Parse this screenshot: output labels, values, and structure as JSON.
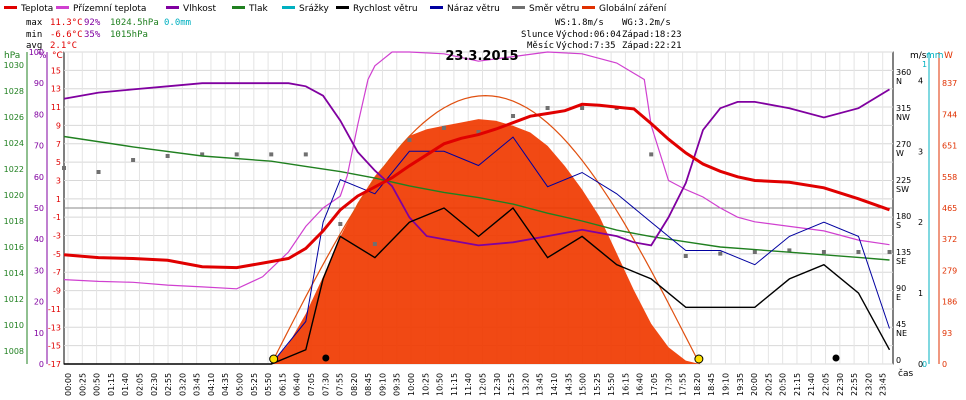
{
  "legend": [
    {
      "label": "Teplota",
      "color": "#e00000"
    },
    {
      "label": "Přízemní teplota",
      "color": "#d040d0"
    },
    {
      "label": "Vlhkost",
      "color": "#8000a0"
    },
    {
      "label": "Tlak",
      "color": "#208020"
    },
    {
      "label": "Srážky",
      "color": "#00b0c0"
    },
    {
      "label": "Rychlost větru",
      "color": "#000000"
    },
    {
      "label": "Náraz větru",
      "color": "#0000a0"
    },
    {
      "label": "Směr větru",
      "color": "#707070"
    },
    {
      "label": "Globální záření",
      "color": "#e03000"
    }
  ],
  "stats": {
    "max_label": "max",
    "max_temp": "11.3°C",
    "max_hum": "92%",
    "max_press": "1024.5hPa",
    "max_rain": "0.0mm",
    "min_label": "min",
    "min_temp": "-6.6°C",
    "min_hum": "35%",
    "min_press": "1015hPa",
    "avg_label": "avg",
    "avg_temp": "2.1°C",
    "ws": "WS:1.8m/s",
    "wg": "WG:3.2m/s",
    "sun_label": "Slunce",
    "sun_rise": "Východ:06:04",
    "sun_set": "Západ:18:23",
    "moon_label": "Měsíc",
    "moon_rise": "Východ:7:35",
    "moon_set": "Západ:22:21"
  },
  "axis_units": {
    "hpa": "hPa",
    "pct": "%",
    "degc": "°C",
    "ms": "m/s",
    "mm": "mm",
    "w": "W",
    "time": "čas"
  },
  "chart_data": {
    "type": "line",
    "title": "23.3.2015",
    "x_tick_labels": [
      "00:00",
      "00:25",
      "00:50",
      "01:15",
      "01:40",
      "02:05",
      "02:30",
      "02:55",
      "03:20",
      "03:45",
      "04:10",
      "04:35",
      "05:00",
      "05:25",
      "05:50",
      "06:15",
      "06:40",
      "07:05",
      "07:30",
      "07:55",
      "08:20",
      "08:45",
      "09:10",
      "09:35",
      "10:00",
      "10:25",
      "10:50",
      "11:15",
      "11:40",
      "12:05",
      "12:30",
      "12:55",
      "13:20",
      "13:45",
      "14:10",
      "14:35",
      "15:00",
      "15:25",
      "15:50",
      "16:15",
      "16:40",
      "17:05",
      "17:30",
      "17:55",
      "18:20",
      "18:45",
      "19:10",
      "19:35",
      "20:00",
      "20:25",
      "20:50",
      "21:15",
      "21:40",
      "22:05",
      "22:30",
      "22:55",
      "23:20",
      "23:45"
    ],
    "temp_ticks": [
      15,
      13,
      11,
      9,
      7,
      5,
      3,
      1,
      -1,
      -3,
      -5,
      -7,
      -9,
      -11,
      -13,
      -15,
      -17
    ],
    "hum_ticks": [
      100,
      90,
      80,
      70,
      60,
      50,
      40,
      30,
      20,
      10,
      0
    ],
    "press_ticks": [
      1030,
      1028,
      1026,
      1024,
      1022,
      1020,
      1018,
      1016,
      1014,
      1012,
      1010,
      1008
    ],
    "dir_ticks": [
      "360 N",
      "315 NW",
      "270 W",
      "225 SW",
      "180 S",
      "135 SE",
      "90 E",
      "45 NE",
      "0"
    ],
    "wind_ticks": [
      4,
      3,
      2,
      1,
      0
    ],
    "rain_ticks": [
      1,
      0
    ],
    "rad_ticks": [
      837,
      744,
      651,
      558,
      465,
      372,
      279,
      186,
      93,
      0
    ],
    "series": [
      {
        "name": "Teplota",
        "unit": "°C",
        "x": [
          0,
          1,
          2,
          3,
          4,
          5,
          5.75,
          6.5,
          7,
          7.5,
          8,
          8.5,
          9,
          9.5,
          10,
          10.5,
          11,
          11.5,
          12,
          12.5,
          13,
          13.5,
          14,
          14.5,
          15,
          15.5,
          16,
          16.5,
          17,
          17.5,
          18,
          18.5,
          19,
          19.5,
          20,
          21,
          22,
          23,
          23.9
        ],
        "y": [
          -5.1,
          -5.4,
          -5.5,
          -5.7,
          -6.4,
          -6.5,
          -6.0,
          -5.5,
          -4.4,
          -2.5,
          -0.2,
          1.3,
          2.3,
          3.3,
          4.6,
          5.8,
          7.0,
          7.6,
          8.0,
          8.6,
          9.3,
          10.0,
          10.3,
          10.6,
          11.3,
          11.2,
          11.0,
          10.8,
          9.2,
          7.5,
          6.0,
          4.8,
          4.0,
          3.4,
          3.0,
          2.8,
          2.2,
          1.0,
          -0.2
        ]
      },
      {
        "name": "Přízemní teplota",
        "unit": "°C",
        "x": [
          0,
          1,
          2,
          3,
          4,
          5,
          5.75,
          6.5,
          7,
          7.5,
          8,
          8.2,
          8.5,
          8.8,
          9,
          9.5,
          10,
          11,
          12,
          13,
          14,
          15,
          16,
          16.8,
          17,
          17.5,
          18,
          18.5,
          19,
          19.5,
          20,
          21,
          22,
          23,
          23.9
        ],
        "y": [
          -7.8,
          -8.0,
          -8.1,
          -8.4,
          -8.6,
          -8.8,
          -7.5,
          -4.8,
          -2.0,
          0.0,
          1.3,
          3.5,
          9.0,
          14.0,
          15.5,
          17.0,
          17.0,
          16.8,
          16.0,
          16.5,
          17.0,
          16.8,
          15.8,
          14.0,
          9.0,
          3.0,
          2.0,
          1.2,
          0.0,
          -1.0,
          -1.5,
          -2.0,
          -2.5,
          -3.5,
          -4.0
        ]
      },
      {
        "name": "Vlhkost",
        "unit": "%",
        "x": [
          0,
          1,
          2,
          3,
          4,
          5,
          5.75,
          6.5,
          7,
          7.5,
          8,
          8.5,
          9,
          9.5,
          10,
          10.5,
          11,
          12,
          13,
          14,
          15,
          16,
          16.5,
          17,
          17.5,
          18,
          18.5,
          19,
          19.5,
          20,
          21,
          22,
          23,
          23.9
        ],
        "y": [
          85,
          87,
          88,
          89,
          90,
          90,
          90,
          90,
          89,
          86,
          78,
          68,
          62,
          57,
          47,
          41,
          40,
          38,
          39,
          41,
          43,
          41,
          39,
          38,
          47,
          58,
          75,
          82,
          84,
          84,
          82,
          79,
          82,
          88
        ]
      },
      {
        "name": "Tlak",
        "unit": "hPa",
        "x": [
          0,
          2,
          4,
          6,
          7,
          8,
          9,
          10,
          11,
          12,
          13,
          14,
          15,
          16,
          17,
          18,
          19,
          20,
          21,
          22,
          23,
          23.9
        ],
        "y": [
          1024.5,
          1023.7,
          1023.0,
          1022.6,
          1022.2,
          1021.8,
          1021.3,
          1020.7,
          1020.2,
          1019.8,
          1019.3,
          1018.6,
          1018.0,
          1017.3,
          1016.8,
          1016.4,
          1016.0,
          1015.8,
          1015.6,
          1015.4,
          1015.2,
          1015.0
        ]
      },
      {
        "name": "Globální záření",
        "unit": "W",
        "x": [
          6.0,
          6.5,
          7,
          7.5,
          8,
          8.5,
          9,
          9.5,
          10,
          10.5,
          11,
          11.5,
          12,
          12.5,
          13,
          13.5,
          14,
          14.5,
          15,
          15.5,
          16,
          16.5,
          17,
          17.5,
          18,
          18.4
        ],
        "y": [
          0,
          60,
          150,
          260,
          380,
          480,
          560,
          620,
          680,
          700,
          710,
          720,
          730,
          725,
          710,
          690,
          650,
          590,
          520,
          440,
          330,
          220,
          120,
          50,
          10,
          0
        ]
      },
      {
        "name": "Rychlost větru",
        "unit": "m/s",
        "x": [
          0,
          6,
          7,
          7.5,
          8,
          9,
          10,
          11,
          12,
          13,
          14,
          15,
          16,
          17,
          18,
          19,
          20,
          21,
          22,
          23,
          23.9
        ],
        "y": [
          0,
          0,
          0.2,
          1.2,
          1.8,
          1.5,
          2.0,
          2.2,
          1.8,
          2.2,
          1.5,
          1.8,
          1.4,
          1.2,
          0.8,
          0.8,
          0.8,
          1.2,
          1.4,
          1.0,
          0.2
        ]
      },
      {
        "name": "Náraz větru",
        "unit": "m/s",
        "x": [
          0,
          6,
          7,
          7.5,
          8,
          9,
          10,
          11,
          12,
          13,
          14,
          15,
          16,
          17,
          18,
          19,
          20,
          21,
          22,
          23,
          23.9
        ],
        "y": [
          0,
          0,
          0.6,
          2.0,
          2.6,
          2.4,
          3.0,
          3.0,
          2.8,
          3.2,
          2.5,
          2.7,
          2.4,
          2.0,
          1.6,
          1.6,
          1.4,
          1.8,
          2.0,
          1.8,
          0.5
        ]
      }
    ],
    "wind_direction_points": {
      "x": [
        0,
        1,
        2,
        3,
        4,
        5,
        6,
        7,
        8,
        9,
        10,
        11,
        12,
        13,
        14,
        15,
        16,
        17,
        18,
        19,
        20,
        21,
        22,
        23,
        23.9
      ],
      "y": [
        245,
        240,
        255,
        260,
        262,
        262,
        262,
        262,
        175,
        150,
        280,
        295,
        290,
        310,
        320,
        320,
        320,
        262,
        135,
        138,
        140,
        142,
        140,
        140,
        140
      ]
    },
    "grid": true
  }
}
